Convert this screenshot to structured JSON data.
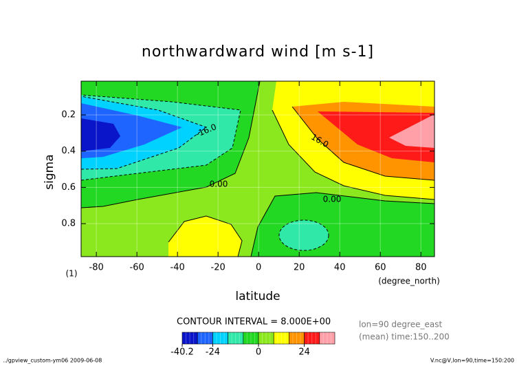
{
  "chart_data": {
    "type": "contour",
    "title": "northwardward wind [m s-1]",
    "x_label": "latitude",
    "x_unit": "(degree_north)",
    "y_label": "sigma",
    "y_unit": "(1)",
    "xlim": [
      -87.5,
      86.7
    ],
    "xticks": [
      -80,
      -60,
      -40,
      -20,
      0,
      20,
      40,
      60,
      80
    ],
    "ylim": [
      0.014,
      0.982
    ],
    "y_inverted": true,
    "yticks": [
      0.2,
      0.4,
      0.6,
      0.8
    ],
    "grid": true,
    "contour_labels": [
      "-16.0",
      "16.0",
      "0.00",
      "0.00"
    ],
    "contour_interval": "CONTOUR INTERVAL = 8.000E+00",
    "info": [
      "lon=90 degree_east",
      "(mean) time:150..200"
    ],
    "colorbar": {
      "levels": [
        -40.2,
        -32,
        -24,
        -16,
        -8,
        0,
        8,
        16,
        24,
        32,
        40
      ],
      "colors": [
        "#0a14c8",
        "#1e64ff",
        "#00d2ff",
        "#30e8a8",
        "#22d822",
        "#8ce81e",
        "#ffff00",
        "#ff9400",
        "#ff1a1a",
        "#ffa0a8"
      ],
      "ticks": [
        -40.2,
        -24,
        0,
        24
      ]
    },
    "footer_left": "../gpview_custom-ym06  2009-06-08",
    "footer_right": "V.nc@V,lon=90,time=150:200"
  }
}
